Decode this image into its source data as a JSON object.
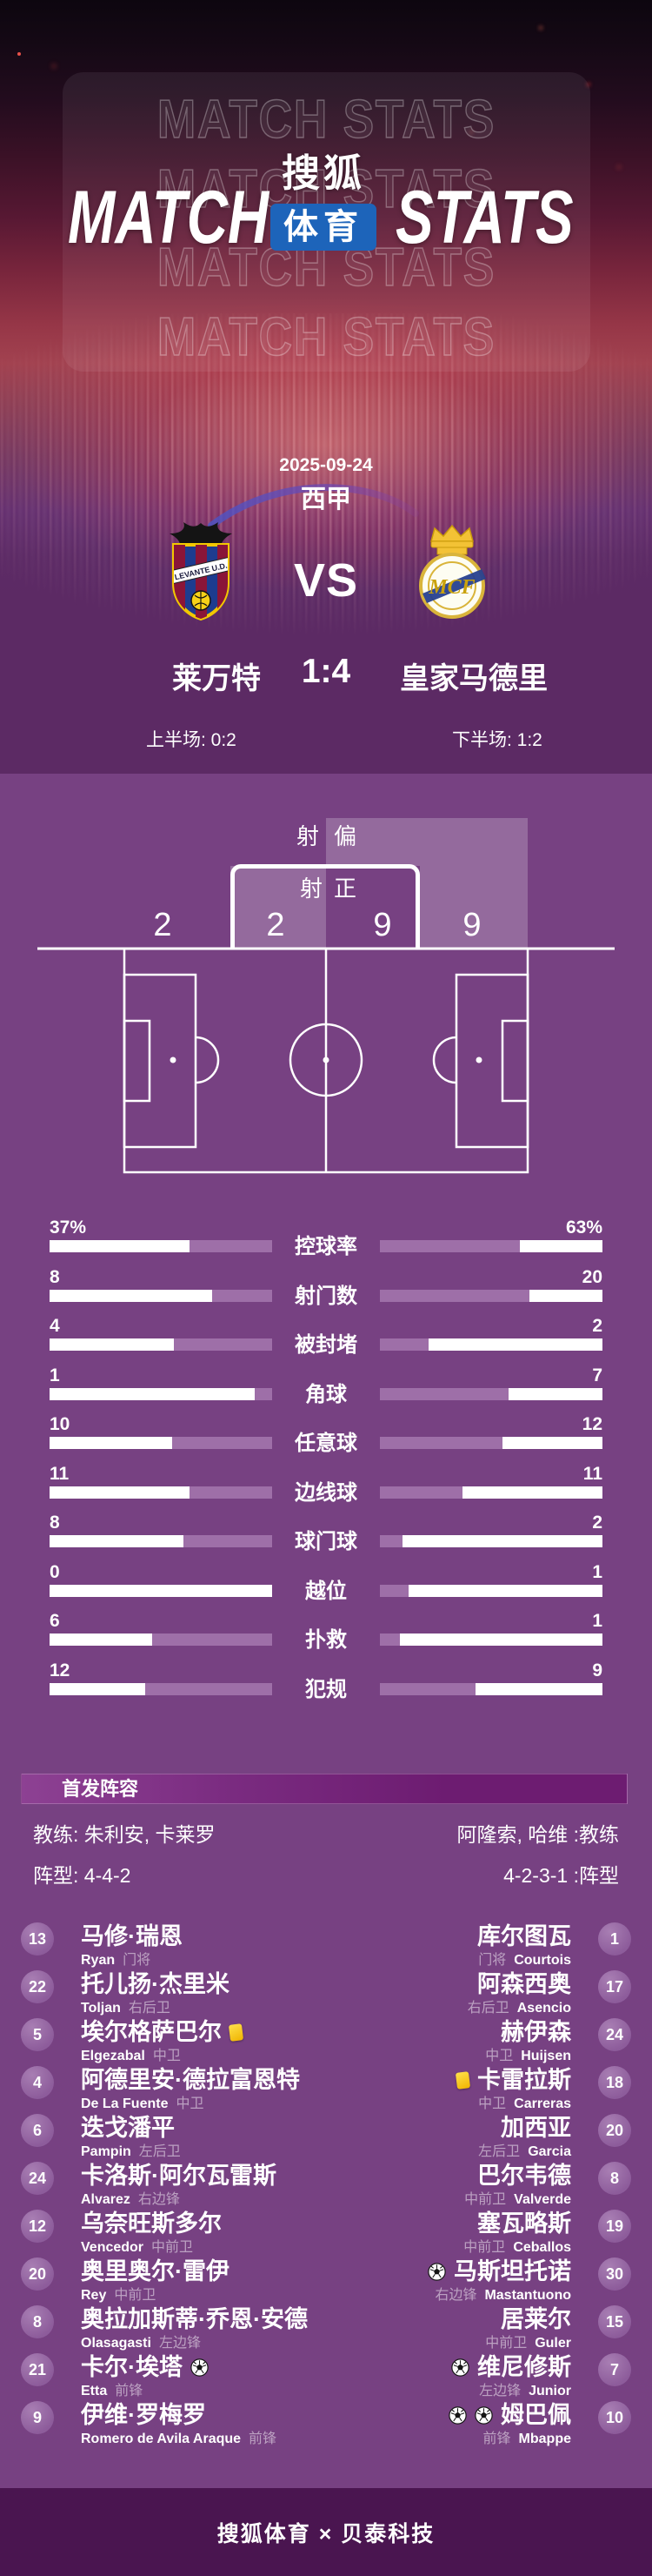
{
  "hero": {
    "watermark": "MATCH STATS",
    "title_left": "MATCH",
    "title_right": "STATS",
    "logo_line1": "搜狐",
    "logo_line2": "体育"
  },
  "match": {
    "date": "2025-09-24",
    "league": "西甲",
    "vs": "VS",
    "home_name": "莱万特",
    "away_name": "皇家马德里",
    "score": "1:4",
    "first_half": "上半场: 0:2",
    "second_half": "下半场: 1:2",
    "home_badge_text": "LEVANTE U.D."
  },
  "shots": {
    "off_target_label": "射偏",
    "on_target_label": "射正",
    "home_off": "2",
    "home_on": "2",
    "away_on": "9",
    "away_off": "9"
  },
  "stats_rows": [
    {
      "label": "控球率",
      "left": "37%",
      "right": "63%",
      "left_fill": 37,
      "right_fill": 63
    },
    {
      "label": "射门数",
      "left": "8",
      "right": "20",
      "left_fill": 27,
      "right_fill": 67
    },
    {
      "label": "被封堵",
      "left": "4",
      "right": "2",
      "left_fill": 44,
      "right_fill": 22
    },
    {
      "label": "角球",
      "left": "1",
      "right": "7",
      "left_fill": 8,
      "right_fill": 58
    },
    {
      "label": "任意球",
      "left": "10",
      "right": "12",
      "left_fill": 45,
      "right_fill": 55
    },
    {
      "label": "边线球",
      "left": "11",
      "right": "11",
      "left_fill": 37,
      "right_fill": 37
    },
    {
      "label": "球门球",
      "left": "8",
      "right": "2",
      "left_fill": 40,
      "right_fill": 10
    },
    {
      "label": "越位",
      "left": "0",
      "right": "1",
      "left_fill": 0,
      "right_fill": 13
    },
    {
      "label": "扑救",
      "left": "6",
      "right": "1",
      "left_fill": 54,
      "right_fill": 9
    },
    {
      "label": "犯规",
      "left": "12",
      "right": "9",
      "left_fill": 57,
      "right_fill": 43
    }
  ],
  "lineup": {
    "section_title": "首发阵容",
    "home_coach": "教练: 朱利安, 卡莱罗",
    "away_coach": "阿隆索, 哈维 :教练",
    "home_formation": "阵型: 4-4-2",
    "away_formation": "4-2-3-1 :阵型",
    "home_players": [
      {
        "num": "13",
        "cn": "马修·瑞恩",
        "en": "Ryan",
        "pos": "门将",
        "yellow": 0,
        "goals": 0
      },
      {
        "num": "22",
        "cn": "托儿扬·杰里米",
        "en": "Toljan",
        "pos": "右后卫",
        "yellow": 0,
        "goals": 0
      },
      {
        "num": "5",
        "cn": "埃尔格萨巴尔",
        "en": "Elgezabal",
        "pos": "中卫",
        "yellow": 1,
        "goals": 0
      },
      {
        "num": "4",
        "cn": "阿德里安·德拉富恩特",
        "en": "De La Fuente",
        "pos": "中卫",
        "yellow": 0,
        "goals": 0
      },
      {
        "num": "6",
        "cn": "迭戈潘平",
        "en": "Pampin",
        "pos": "左后卫",
        "yellow": 0,
        "goals": 0
      },
      {
        "num": "24",
        "cn": "卡洛斯·阿尔瓦雷斯",
        "en": "Alvarez",
        "pos": "右边锋",
        "yellow": 0,
        "goals": 0
      },
      {
        "num": "12",
        "cn": "乌奈旺斯多尔",
        "en": "Vencedor",
        "pos": "中前卫",
        "yellow": 0,
        "goals": 0
      },
      {
        "num": "20",
        "cn": "奥里奥尔·雷伊",
        "en": "Rey",
        "pos": "中前卫",
        "yellow": 0,
        "goals": 0
      },
      {
        "num": "8",
        "cn": "奥拉加斯蒂·乔恩·安德",
        "en": "Olasagasti",
        "pos": "左边锋",
        "yellow": 0,
        "goals": 0
      },
      {
        "num": "21",
        "cn": "卡尔·埃塔",
        "en": "Etta",
        "pos": "前锋",
        "yellow": 0,
        "goals": 1
      },
      {
        "num": "9",
        "cn": "伊维·罗梅罗",
        "en": "Romero de Avila Araque",
        "pos": "前锋",
        "yellow": 0,
        "goals": 0
      }
    ],
    "away_players": [
      {
        "num": "1",
        "cn": "库尔图瓦",
        "en": "Courtois",
        "pos": "门将",
        "yellow": 0,
        "goals": 0
      },
      {
        "num": "17",
        "cn": "阿森西奥",
        "en": "Asencio",
        "pos": "右后卫",
        "yellow": 0,
        "goals": 0
      },
      {
        "num": "24",
        "cn": "赫伊森",
        "en": "Huijsen",
        "pos": "中卫",
        "yellow": 0,
        "goals": 0
      },
      {
        "num": "18",
        "cn": "卡雷拉斯",
        "en": "Carreras",
        "pos": "中卫",
        "yellow": 1,
        "goals": 0
      },
      {
        "num": "20",
        "cn": "加西亚",
        "en": "Garcia",
        "pos": "左后卫",
        "yellow": 0,
        "goals": 0
      },
      {
        "num": "8",
        "cn": "巴尔韦德",
        "en": "Valverde",
        "pos": "中前卫",
        "yellow": 0,
        "goals": 0
      },
      {
        "num": "19",
        "cn": "塞瓦略斯",
        "en": "Ceballos",
        "pos": "中前卫",
        "yellow": 0,
        "goals": 0
      },
      {
        "num": "30",
        "cn": "马斯坦托诺",
        "en": "Mastantuono",
        "pos": "右边锋",
        "yellow": 0,
        "goals": 1
      },
      {
        "num": "15",
        "cn": "居莱尔",
        "en": "Guler",
        "pos": "中前卫",
        "yellow": 0,
        "goals": 0
      },
      {
        "num": "7",
        "cn": "维尼修斯",
        "en": "Junior",
        "pos": "左边锋",
        "yellow": 0,
        "goals": 1
      },
      {
        "num": "10",
        "cn": "姆巴佩",
        "en": "Mbappe",
        "pos": "前锋",
        "yellow": 0,
        "goals": 2
      }
    ]
  },
  "footer": {
    "text": "搜狐体育 × 贝泰科技"
  },
  "colors": {
    "page_bg": "#774182",
    "hero_deep_purple": "#5c2a64",
    "bar_fill": "#9e6fa8",
    "bar_bg": "#ffffff",
    "highlight_overlay": "rgba(255,255,255,0.22)",
    "lineup_band_from": "#8d4193",
    "lineup_band_to": "#6d1c71",
    "number_badge": "#8d5c9b",
    "footer_bg": "#4a1550",
    "logo_blue": "#1d64ba",
    "yellow_card": "#f7c61e"
  },
  "chart_data": {
    "type": "bar",
    "orientation": "horizontal-paired",
    "title": "MATCH STATS 莱万特 1:4 皇家马德里",
    "categories": [
      "控球率",
      "射门数",
      "被封堵",
      "角球",
      "任意球",
      "边线球",
      "球门球",
      "越位",
      "扑救",
      "犯规"
    ],
    "series": [
      {
        "name": "莱万特",
        "values": [
          37,
          8,
          4,
          1,
          10,
          11,
          8,
          0,
          6,
          12
        ]
      },
      {
        "name": "皇家马德里",
        "values": [
          63,
          20,
          2,
          7,
          12,
          11,
          2,
          1,
          1,
          9
        ]
      }
    ],
    "units": [
      "%",
      "",
      "",
      "",
      "",
      "",
      "",
      "",
      "",
      ""
    ],
    "shots_diagram": {
      "home_off_target": 2,
      "home_on_target": 2,
      "away_on_target": 9,
      "away_off_target": 9
    },
    "legend_position": "none",
    "grid": false
  }
}
